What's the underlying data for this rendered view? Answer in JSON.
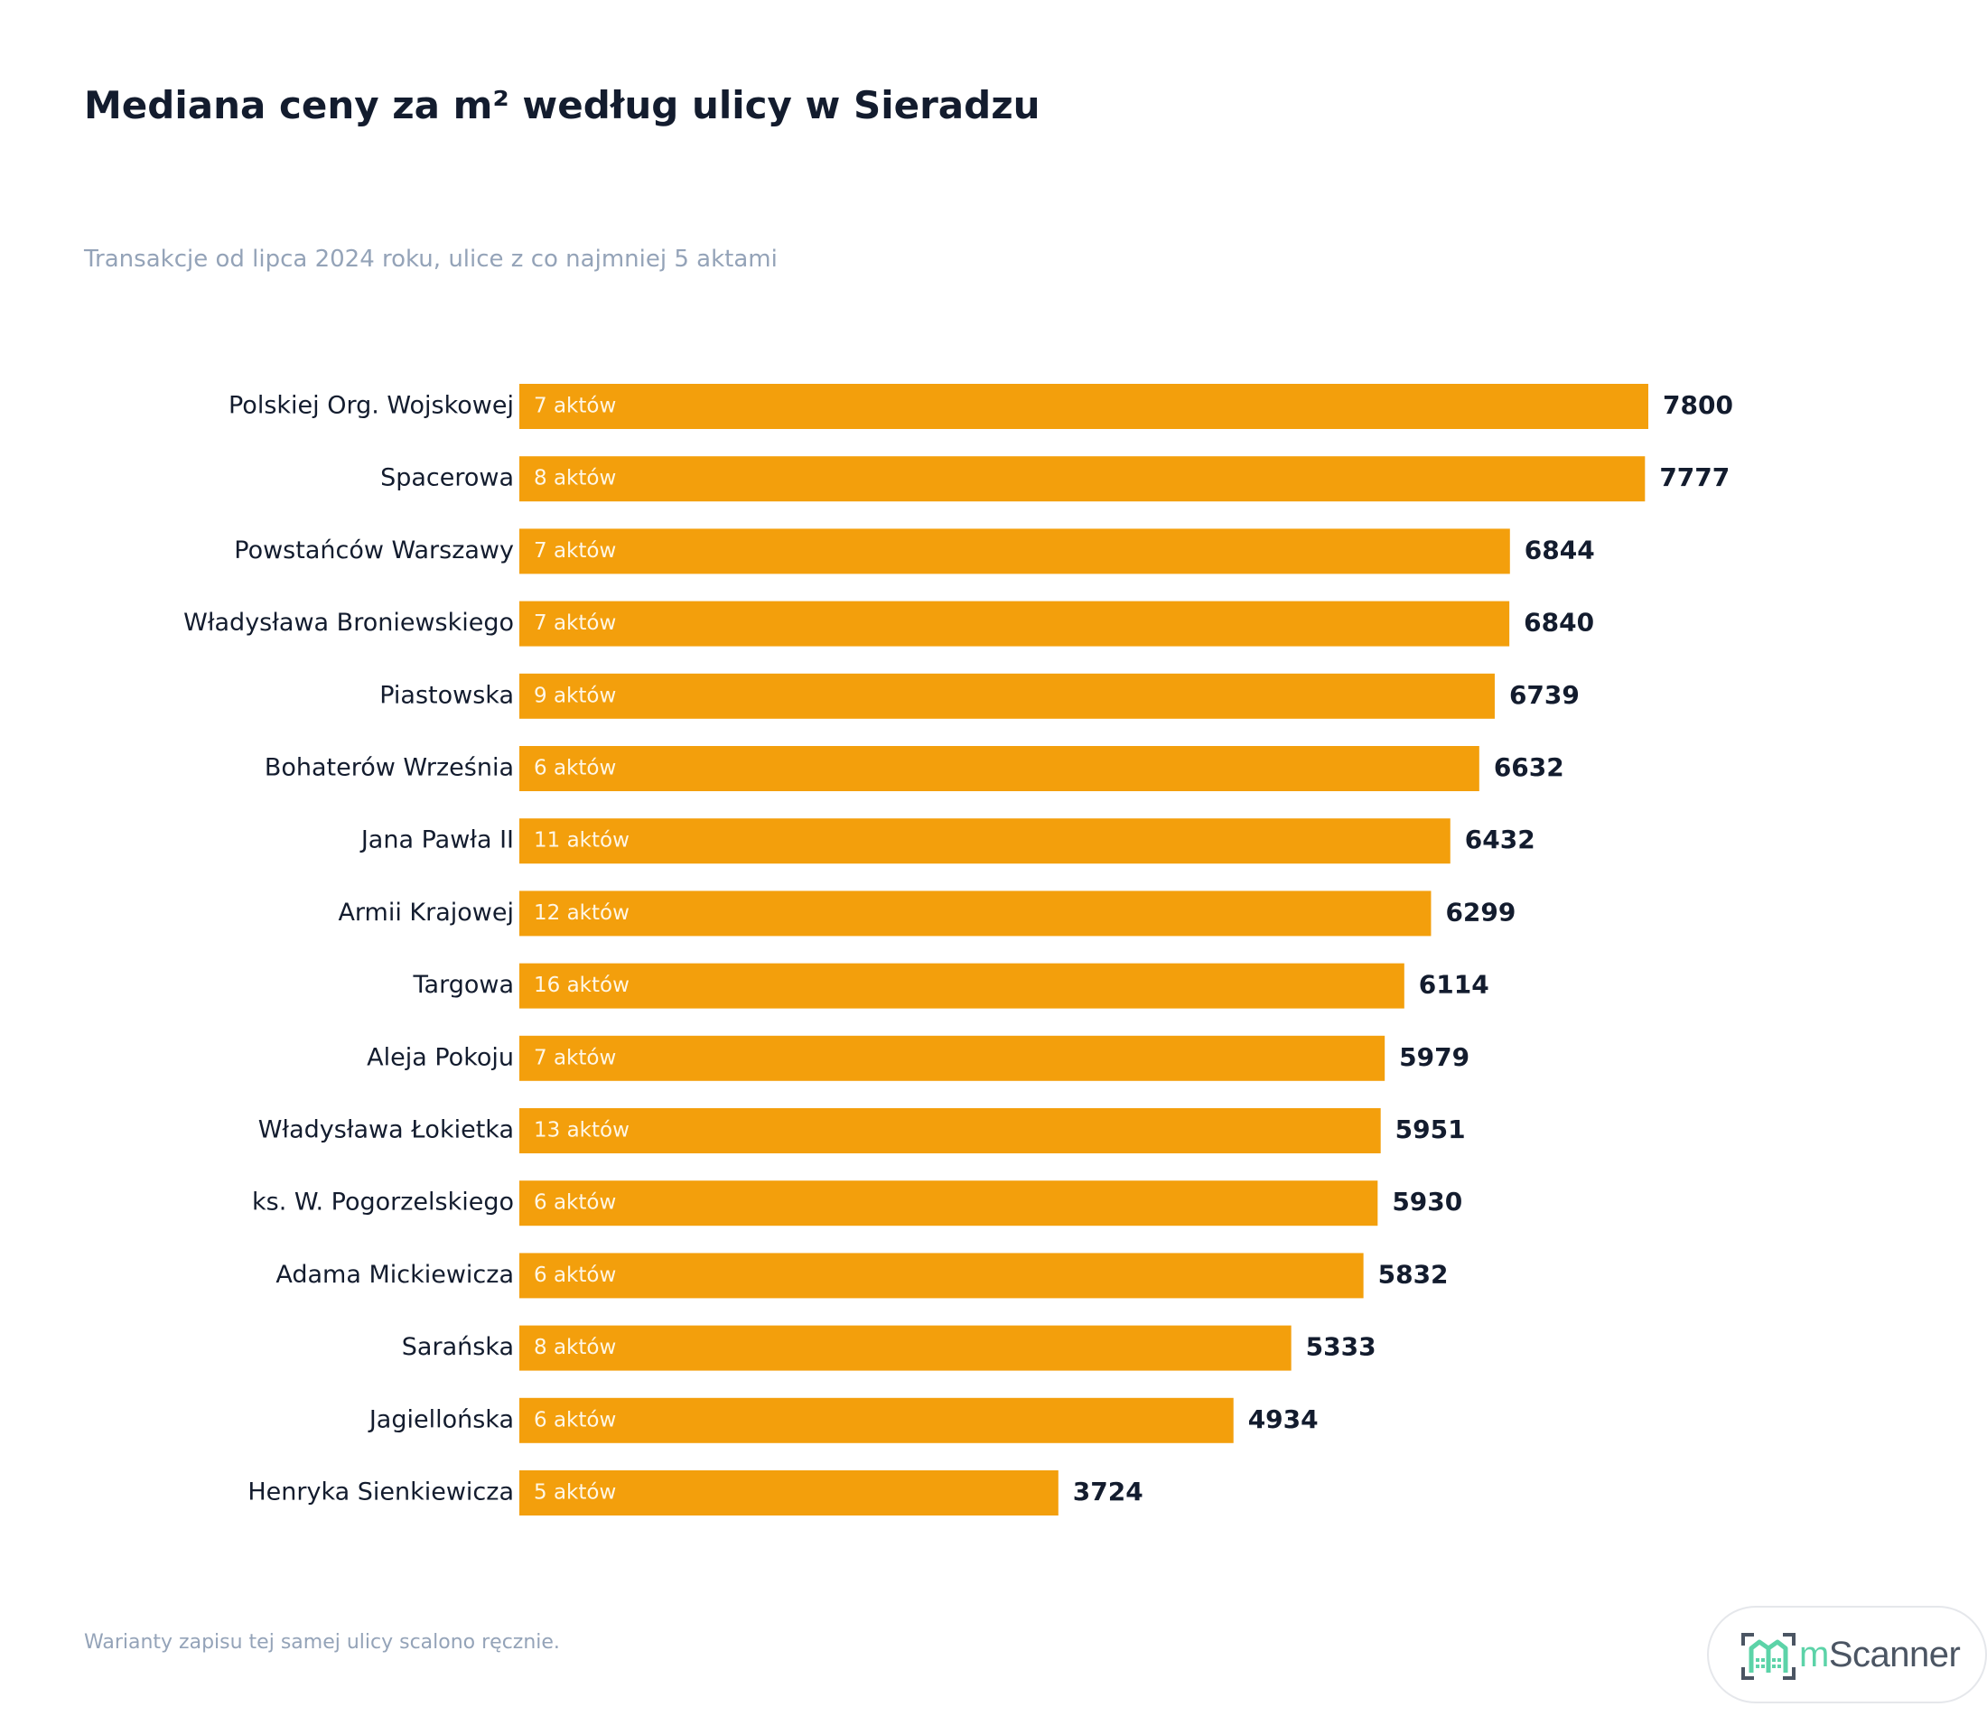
{
  "title": "Mediana ceny za m² według ulicy w Sieradzu",
  "subtitle": "Transakcje od lipca 2024 roku, ulice z co najmniej 5 aktami",
  "footnote": "Warianty zapisu tej samej ulicy scalono ręcznie.",
  "logo": {
    "prefix": "m",
    "name": "Scanner",
    "icon": "house-scan-icon"
  },
  "colors": {
    "bar": "#f39f0c",
    "title": "#131c2e",
    "muted": "#94a3b8",
    "inside_label": "#fff7e6",
    "logo_accent": "#5cd3a8"
  },
  "chart_data": {
    "type": "bar",
    "orientation": "horizontal",
    "categories": [
      "Polskiej Org. Wojskowej",
      "Spacerowa",
      "Powstańców Warszawy",
      "Władysława Broniewskiego",
      "Piastowska",
      "Bohaterów Września",
      "Jana Pawła II",
      "Armii Krajowej",
      "Targowa",
      "Aleja Pokoju",
      "Władysława Łokietka",
      "ks. W. Pogorzelskiego",
      "Adama Mickiewicza",
      "Sarańska",
      "Jagiellońska",
      "Henryka Sienkiewicza"
    ],
    "values": [
      7800,
      7777,
      6844,
      6840,
      6739,
      6632,
      6432,
      6299,
      6114,
      5979,
      5951,
      5930,
      5832,
      5333,
      4934,
      3724
    ],
    "inside_labels": [
      "7 aktów",
      "8 aktów",
      "7 aktów",
      "7 aktów",
      "9 aktów",
      "6 aktów",
      "11 aktów",
      "12 aktów",
      "16 aktów",
      "7 aktów",
      "13 aktów",
      "6 aktów",
      "6 aktów",
      "8 aktów",
      "6 aktów",
      "5 aktów"
    ],
    "xlim": [
      0,
      7800
    ],
    "grid": false,
    "legend": "none"
  }
}
